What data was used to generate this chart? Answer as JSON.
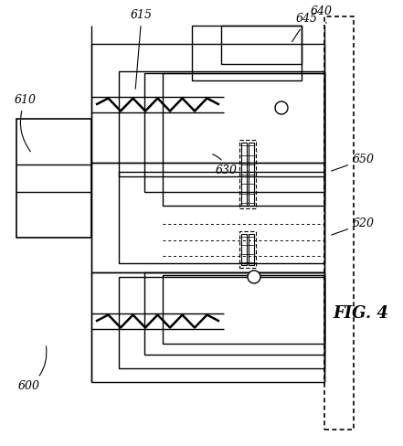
{
  "bg_color": "#ffffff",
  "lc": "#000000",
  "fig_label": "FIG. 4",
  "labels": [
    "610",
    "600",
    "615",
    "630",
    "640",
    "645",
    "650",
    "620"
  ]
}
